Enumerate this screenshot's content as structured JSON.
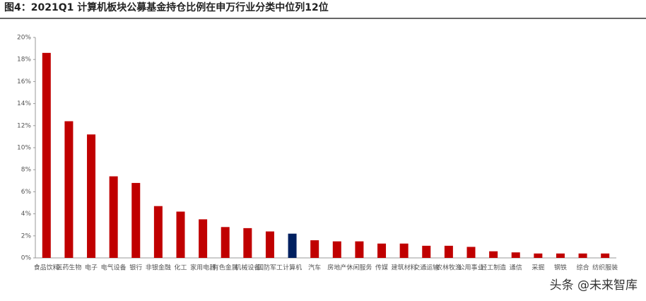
{
  "chart_data": {
    "type": "bar",
    "title": "图4：2021Q1 计算机板块公募基金持仓比例在申万行业分类中位列12位",
    "categories": [
      "食品饮料",
      "医药生物",
      "电子",
      "电气设备",
      "银行",
      "非银金融",
      "化工",
      "家用电器",
      "有色金属",
      "机械设备",
      "国防军工",
      "计算机",
      "汽车",
      "房地产",
      "休闲服务",
      "传媒",
      "建筑材料",
      "交通运输",
      "农林牧渔",
      "公用事业",
      "轻工制造",
      "通信",
      "采掘",
      "钢铁",
      "综合",
      "纺织服装"
    ],
    "values": [
      18.6,
      12.4,
      11.2,
      7.4,
      6.8,
      4.7,
      4.2,
      3.5,
      2.8,
      2.7,
      2.4,
      2.2,
      1.6,
      1.5,
      1.5,
      1.3,
      1.3,
      1.1,
      1.1,
      1.0,
      0.6,
      0.5,
      0.4,
      0.4,
      0.4,
      0.4
    ],
    "colors": [
      "#c00000",
      "#c00000",
      "#c00000",
      "#c00000",
      "#c00000",
      "#c00000",
      "#c00000",
      "#c00000",
      "#c00000",
      "#c00000",
      "#c00000",
      "#002060",
      "#c00000",
      "#c00000",
      "#c00000",
      "#c00000",
      "#c00000",
      "#c00000",
      "#c00000",
      "#c00000",
      "#c00000",
      "#c00000",
      "#c00000",
      "#c00000",
      "#c00000",
      "#c00000"
    ],
    "ylim": [
      0,
      20
    ],
    "yticks": [
      {
        "value": 0,
        "label": "0%"
      },
      {
        "value": 2,
        "label": "2%"
      },
      {
        "value": 4,
        "label": "4%"
      },
      {
        "value": 6,
        "label": "6%"
      },
      {
        "value": 8,
        "label": "8%"
      },
      {
        "value": 10,
        "label": "10%"
      },
      {
        "value": 12,
        "label": "12%"
      },
      {
        "value": 14,
        "label": "14%"
      },
      {
        "value": 16,
        "label": "16%"
      },
      {
        "value": 18,
        "label": "18%"
      },
      {
        "value": 20,
        "label": "20%"
      }
    ],
    "watermark": "头条 @未来智库"
  }
}
